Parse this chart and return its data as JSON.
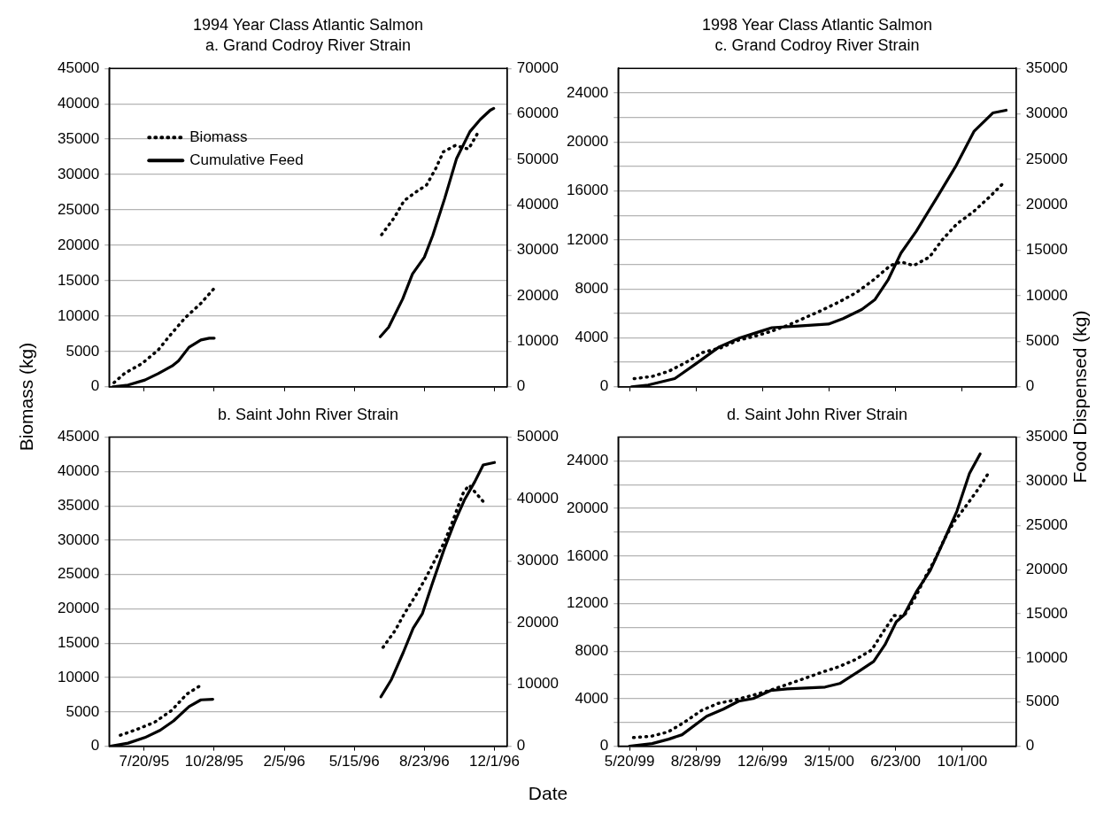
{
  "chart_data": [
    {
      "type": "line",
      "title": "1994 Year Class Atlantic Salmon",
      "subtitle": "a. Grand Codroy River Strain",
      "ylabel": "Biomass (kg)",
      "xlim": [
        "1995-05-31",
        "1996-12-19"
      ],
      "xticks": [
        {
          "value": "1995-07-20",
          "label": null
        },
        {
          "value": "1995-10-28",
          "label": null
        },
        {
          "value": "1996-02-05",
          "label": null
        },
        {
          "value": "1996-05-15",
          "label": null
        },
        {
          "value": "1996-08-23",
          "label": null
        },
        {
          "value": "1996-12-01",
          "label": null
        }
      ],
      "ylim": [
        0,
        45000
      ],
      "yticks": [
        0,
        5000,
        10000,
        15000,
        20000,
        25000,
        30000,
        35000,
        40000,
        45000
      ],
      "y2lim": [
        0,
        70000
      ],
      "y2ticks": [
        0,
        10000,
        20000,
        30000,
        40000,
        50000,
        60000,
        70000
      ],
      "grid": "y",
      "legend": "top left",
      "tick_labels": "y",
      "series": [
        {
          "name": "Biomass",
          "color": "#000000",
          "line_style": "dotted",
          "x": [
            "1995-06-07",
            "1995-06-22",
            "1995-07-17",
            "1995-08-09",
            "1995-08-27",
            "1995-09-17",
            "1995-10-09",
            "1995-10-27",
            "1996-02-05",
            "1996-06-23",
            "1996-07-11",
            "1996-07-25",
            "1996-08-12",
            "1996-08-26",
            "1996-09-08",
            "1996-09-19",
            "1996-10-06",
            "1996-10-25",
            "1996-11-08"
          ],
          "values": [
            600,
            1900,
            3300,
            5200,
            7400,
            9800,
            11800,
            13800,
            null,
            21500,
            23900,
            26300,
            27600,
            28500,
            30800,
            33200,
            34100,
            33600,
            36000
          ]
        },
        {
          "name": "Cumulative Feed",
          "color": "#000000",
          "line_style": "solid",
          "axis": "y2",
          "x": [
            "1995-06-05",
            "1995-06-27",
            "1995-07-21",
            "1995-08-09",
            "1995-08-29",
            "1995-09-07",
            "1995-09-22",
            "1995-10-09",
            "1995-10-21",
            "1995-10-28",
            "1996-02-05",
            "1996-06-21",
            "1996-07-03",
            "1996-07-23",
            "1996-08-06",
            "1996-08-23",
            "1996-09-04",
            "1996-09-21",
            "1996-10-08",
            "1996-10-27",
            "1996-11-11",
            "1996-11-25",
            "1996-11-30"
          ],
          "values": [
            0,
            400,
            1500,
            2900,
            4600,
            5700,
            8700,
            10300,
            10700,
            10700,
            null,
            11000,
            13100,
            19300,
            24800,
            28500,
            33300,
            41400,
            50200,
            56100,
            58800,
            60800,
            61200
          ]
        }
      ]
    },
    {
      "type": "line",
      "title": "1998 Year Class Atlantic Salmon",
      "subtitle": "c. Grand Codroy River Strain",
      "y2label": "Food Dispensed (kg)",
      "xlim": [
        "1999-05-03",
        "2000-12-21"
      ],
      "xticks": [
        {
          "value": "1999-05-20",
          "label": null
        },
        {
          "value": "1999-08-28",
          "label": null
        },
        {
          "value": "1999-12-06",
          "label": null
        },
        {
          "value": "2000-03-15",
          "label": null
        },
        {
          "value": "2000-06-23",
          "label": null
        },
        {
          "value": "2000-10-01",
          "label": null
        }
      ],
      "ylim": [
        0,
        26000
      ],
      "yticks": [
        0,
        {
          "value": 2000,
          "label": null
        },
        4000,
        {
          "value": 6000,
          "label": null
        },
        8000,
        {
          "value": 10000,
          "label": null
        },
        12000,
        {
          "value": 14000,
          "label": null
        },
        16000,
        {
          "value": 18000,
          "label": null
        },
        20000,
        {
          "value": 22000,
          "label": null
        },
        24000
      ],
      "y2lim": [
        0,
        35000
      ],
      "y2ticks": [
        0,
        5000,
        10000,
        15000,
        20000,
        25000,
        30000,
        35000
      ],
      "grid": "y",
      "tick_labels": "y",
      "series": [
        {
          "color": "#000000",
          "line_style": "dotted",
          "x": [
            "1999-05-27",
            "1999-06-23",
            "1999-07-18",
            "1999-08-13",
            "1999-09-07",
            "1999-10-05",
            "1999-10-30",
            "1999-11-22",
            "1999-12-17",
            "2000-01-12",
            "2000-02-06",
            "2000-03-02",
            "2000-03-29",
            "2000-04-25",
            "2000-05-20",
            "2000-06-15",
            "2000-07-01",
            "2000-07-20",
            "2000-08-13",
            "2000-09-01",
            "2000-09-23",
            "2000-10-18",
            "2000-11-11",
            "2000-12-05"
          ],
          "values": [
            670,
            850,
            1270,
            2000,
            2800,
            3200,
            3800,
            4100,
            4500,
            5000,
            5600,
            6200,
            6900,
            7700,
            8700,
            9900,
            10200,
            9900,
            10600,
            12000,
            13300,
            14300,
            15500,
            16800
          ]
        },
        {
          "color": "#000000",
          "line_style": "solid",
          "axis": "y2",
          "x": [
            "1999-05-23",
            "1999-06-17",
            "1999-07-27",
            "1999-08-29",
            "1999-10-02",
            "1999-10-30",
            "1999-12-03",
            "1999-12-20",
            "2000-02-03",
            "2000-03-14",
            "2000-04-05",
            "2000-05-03",
            "2000-05-23",
            "2000-06-12",
            "2000-07-01",
            "2000-07-24",
            "2000-08-24",
            "2000-09-21",
            "2000-10-19",
            "2000-11-16",
            "2000-12-06"
          ],
          "values": [
            0,
            200,
            900,
            2600,
            4400,
            5300,
            6100,
            6500,
            6700,
            6900,
            7500,
            8500,
            9600,
            11800,
            14700,
            17100,
            20800,
            24200,
            28100,
            30100,
            30400
          ]
        }
      ]
    },
    {
      "type": "line",
      "title": "b. Saint John River Strain",
      "xlabel": "Date",
      "xlim": [
        "1995-05-31",
        "1996-12-19"
      ],
      "xticks": [
        {
          "value": "1995-07-20",
          "label": "7/20/95"
        },
        {
          "value": "1995-10-28",
          "label": "10/28/95"
        },
        {
          "value": "1996-02-05",
          "label": "2/5/96"
        },
        {
          "value": "1996-05-15",
          "label": "5/15/96"
        },
        {
          "value": "1996-08-23",
          "label": "8/23/96"
        },
        {
          "value": "1996-12-01",
          "label": "12/1/96"
        }
      ],
      "ylim": [
        0,
        45000
      ],
      "yticks": [
        0,
        5000,
        10000,
        15000,
        20000,
        25000,
        30000,
        35000,
        40000,
        45000
      ],
      "y2lim": [
        0,
        50000
      ],
      "y2ticks": [
        0,
        10000,
        20000,
        30000,
        40000,
        50000
      ],
      "grid": "y",
      "series": [
        {
          "color": "#000000",
          "line_style": "dotted",
          "x": [
            "1995-06-16",
            "1995-07-11",
            "1995-08-04",
            "1995-08-28",
            "1995-09-19",
            "1995-10-11",
            "1996-02-05",
            "1996-06-25",
            "1996-07-12",
            "1996-07-26",
            "1996-08-11",
            "1996-08-25",
            "1996-09-07",
            "1996-09-20",
            "1996-09-30",
            "1996-10-09",
            "1996-10-18",
            "1996-10-26",
            "1996-11-16"
          ],
          "values": [
            1600,
            2500,
            3500,
            5200,
            7600,
            9000,
            null,
            14400,
            16800,
            19400,
            22000,
            24500,
            27100,
            29600,
            32100,
            34600,
            37000,
            38000,
            35500
          ]
        },
        {
          "color": "#000000",
          "line_style": "solid",
          "axis": "y2",
          "x": [
            "1995-06-02",
            "1995-06-27",
            "1995-07-21",
            "1995-08-12",
            "1995-08-31",
            "1995-09-22",
            "1995-10-09",
            "1995-10-26",
            "1996-02-05",
            "1996-06-22",
            "1996-07-07",
            "1996-07-24",
            "1996-08-07",
            "1996-08-20",
            "1996-09-03",
            "1996-09-20",
            "1996-10-05",
            "1996-10-19",
            "1996-11-03",
            "1996-11-15",
            "1996-12-01"
          ],
          "values": [
            0,
            500,
            1400,
            2600,
            4100,
            6400,
            7500,
            7600,
            null,
            8000,
            10800,
            15200,
            19100,
            21400,
            26200,
            31800,
            36200,
            39800,
            42800,
            45500,
            45900
          ]
        }
      ]
    },
    {
      "type": "line",
      "title": "d. Saint John River Strain",
      "xlim": [
        "1999-05-03",
        "2000-12-21"
      ],
      "xticks": [
        {
          "value": "1999-05-20",
          "label": "5/20/99"
        },
        {
          "value": "1999-08-28",
          "label": "8/28/99"
        },
        {
          "value": "1999-12-06",
          "label": "12/6/99"
        },
        {
          "value": "2000-03-15",
          "label": "3/15/00"
        },
        {
          "value": "2000-06-23",
          "label": "6/23/00"
        },
        {
          "value": "2000-10-01",
          "label": "10/1/00"
        }
      ],
      "ylim": [
        0,
        26000
      ],
      "yticks": [
        0,
        {
          "value": 2000,
          "label": null
        },
        4000,
        {
          "value": 6000,
          "label": null
        },
        8000,
        {
          "value": 10000,
          "label": null
        },
        12000,
        {
          "value": 14000,
          "label": null
        },
        16000,
        {
          "value": 18000,
          "label": null
        },
        20000,
        {
          "value": 22000,
          "label": null
        },
        24000
      ],
      "y2lim": [
        0,
        35000
      ],
      "y2ticks": [
        0,
        5000,
        10000,
        15000,
        20000,
        25000,
        30000,
        35000
      ],
      "grid": "y",
      "series": [
        {
          "color": "#000000",
          "line_style": "dotted",
          "x": [
            "1999-05-26",
            "1999-06-21",
            "1999-07-17",
            "1999-08-10",
            "1999-09-05",
            "1999-09-30",
            "1999-10-26",
            "1999-11-22",
            "1999-12-17",
            "2000-01-12",
            "2000-02-07",
            "2000-03-03",
            "2000-03-30",
            "2000-04-24",
            "2000-05-18",
            "2000-06-04",
            "2000-06-21",
            "2000-07-05",
            "2000-07-25",
            "2000-08-09",
            "2000-08-22",
            "2000-09-04",
            "2000-09-19",
            "2000-10-08",
            "2000-10-26",
            "2000-11-12"
          ],
          "values": [
            730,
            830,
            1200,
            2000,
            3000,
            3600,
            3900,
            4300,
            4700,
            5200,
            5700,
            6200,
            6700,
            7300,
            8100,
            9600,
            11000,
            10900,
            12800,
            14500,
            15800,
            17400,
            18900,
            20300,
            21700,
            23200
          ]
        },
        {
          "color": "#000000",
          "line_style": "solid",
          "axis": "y2",
          "x": [
            "1999-05-20",
            "1999-06-23",
            "1999-07-18",
            "1999-08-07",
            "1999-09-13",
            "1999-10-08",
            "1999-10-31",
            "1999-11-22",
            "1999-12-18",
            "2000-01-12",
            "2000-03-09",
            "2000-03-31",
            "2000-04-29",
            "2000-05-21",
            "2000-06-07",
            "2000-06-24",
            "2000-07-05",
            "2000-07-25",
            "2000-08-14",
            "2000-09-03",
            "2000-09-23",
            "2000-10-12",
            "2000-10-28"
          ],
          "values": [
            0,
            300,
            800,
            1300,
            3400,
            4200,
            5100,
            5400,
            6300,
            6500,
            6700,
            7100,
            8500,
            9600,
            11500,
            14100,
            14800,
            17600,
            19900,
            23200,
            26600,
            30900,
            33100
          ]
        }
      ]
    }
  ]
}
